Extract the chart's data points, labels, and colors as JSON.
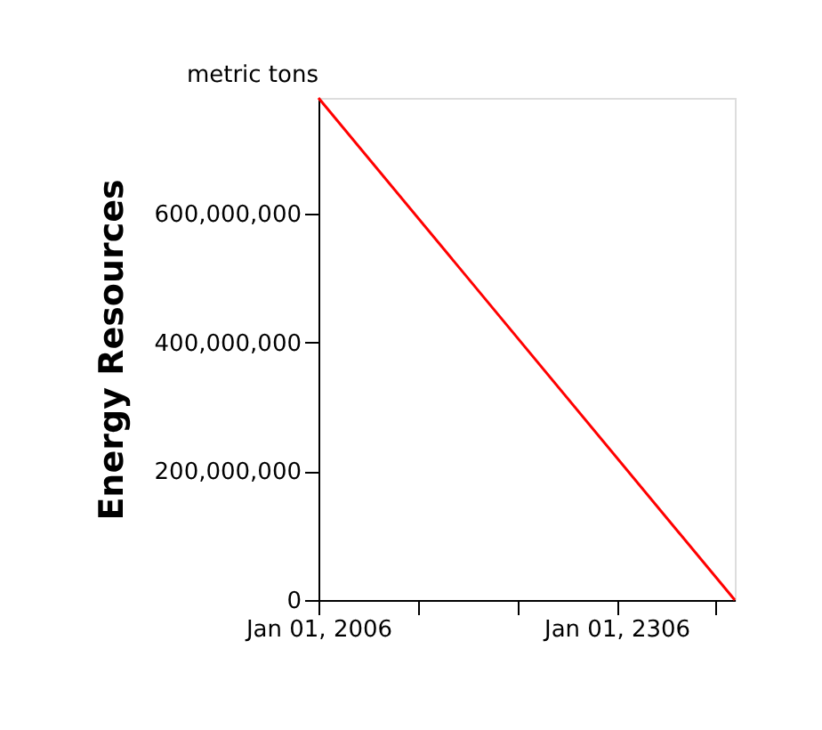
{
  "chart_data": {
    "type": "line",
    "ylabel": "Energy Resources",
    "annotations": [
      "metric tons"
    ],
    "x": [
      "2006-01-01",
      "2425-01-01"
    ],
    "series": [
      {
        "color": "#ff0000",
        "values": [
          780000000,
          0
        ]
      }
    ],
    "xlim": [
      "2006-01-01",
      "2425-01-01"
    ],
    "xticks": [
      {
        "value": "2006-01-01",
        "label": "Jan 01, 2006"
      },
      {
        "value": "2106-01-01",
        "label": null
      },
      {
        "value": "2206-01-01",
        "label": null
      },
      {
        "value": "2306-01-01",
        "label": "Jan 01, 2306"
      },
      {
        "value": "2406-01-01",
        "label": null
      }
    ],
    "ylim": [
      0,
      780000000
    ],
    "yticks": [
      0,
      {
        "value": 200000000,
        "label": "200,000,000"
      },
      {
        "value": 400000000,
        "label": "400,000,000"
      },
      {
        "value": 600000000,
        "label": "600,000,000"
      }
    ],
    "grid": false,
    "marker": "none",
    "line_style": "solid"
  }
}
